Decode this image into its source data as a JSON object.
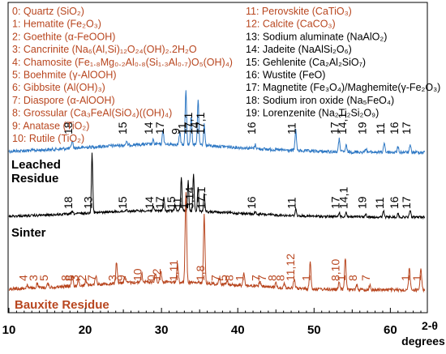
{
  "chart_data": {
    "type": "line",
    "xlabel_line1": "2-θ",
    "xlabel_line2": "degrees",
    "xlim": [
      10,
      65
    ],
    "x_ticks": [
      10,
      20,
      30,
      40,
      50,
      60
    ],
    "series": [
      {
        "name": "Leached Residue",
        "color": "#2e78c4"
      },
      {
        "name": "Sinter",
        "color": "#000000"
      },
      {
        "name": "Bauxite Residue",
        "color": "#b8461f"
      }
    ],
    "legend_left": [
      {
        "idx": "0",
        "name": "Quartz",
        "formula": "(SiO₂)",
        "color": "#b8461f"
      },
      {
        "idx": "1",
        "name": "Hematite",
        "formula": "(Fe₂O₃)",
        "color": "#b8461f"
      },
      {
        "idx": "2",
        "name": "Goethite",
        "formula": "(α-FeOOH)",
        "color": "#b8461f"
      },
      {
        "idx": "3",
        "name": "Cancrinite",
        "formula": "(Na₆(Al,Si)₁₂O₂₄(OH)₂.2H₂O",
        "color": "#b8461f"
      },
      {
        "idx": "4",
        "name": "Chamosite",
        "formula": "(Fe₁.₈Mg₀.₂Al₀.₈(Si₁.₃Al₀.₇)O₅(OH)₄)",
        "color": "#b8461f"
      },
      {
        "idx": "5",
        "name": "Boehmite",
        "formula": "(γ-AlOOH)",
        "color": "#b8461f"
      },
      {
        "idx": "6",
        "name": "Gibbsite",
        "formula": "(Al(OH)₃)",
        "color": "#b8461f"
      },
      {
        "idx": "7",
        "name": "Diaspore",
        "formula": "(α-AlOOH)",
        "color": "#b8461f"
      },
      {
        "idx": "8",
        "name": "Grossular",
        "formula": "(Ca₃FeAl(SiO₄)((OH)₄)",
        "color": "#b8461f"
      },
      {
        "idx": "9",
        "name": "Anatase",
        "formula": "(TiO₂)",
        "color": "#b8461f"
      },
      {
        "idx": "10",
        "name": "Rutile",
        "formula": "(TiO₂)",
        "color": "#b8461f"
      }
    ],
    "legend_right": [
      {
        "idx": "11",
        "name": "Perovskite",
        "formula": "(CaTiO₃)",
        "color": "#b8461f"
      },
      {
        "idx": "12",
        "name": "Calcite",
        "formula": "(CaCO₃)",
        "color": "#b8461f"
      },
      {
        "idx": "13",
        "name": "Sodium aluminate",
        "formula": "(NaAlO₂)",
        "color": "#000000"
      },
      {
        "idx": "14",
        "name": "Jadeite",
        "formula": "(NaAlSi₂O₆)",
        "color": "#000000"
      },
      {
        "idx": "15",
        "name": "Gehlenite",
        "formula": "(Ca₂Al₂SiO₇)",
        "color": "#000000"
      },
      {
        "idx": "16",
        "name": "Wustite",
        "formula": "(FeO)",
        "color": "#000000"
      },
      {
        "idx": "17",
        "name": "Magnetite",
        "formula": "(Fe₃O₄)/Maghemite(γ-Fe₂O₃)",
        "color": "#000000"
      },
      {
        "idx": "18",
        "name": "Sodium iron oxide",
        "formula": "(Na₅FeO₄)",
        "color": "#000000"
      },
      {
        "idx": "19",
        "name": "Lorenzenite",
        "formula": "(Na₂Ti₂Si₂O₉)",
        "color": "#000000"
      }
    ],
    "series_labels": [
      {
        "text": "Leached",
        "series": 0
      },
      {
        "text": "Residue",
        "series": 0
      },
      {
        "text": "Sinter",
        "series": 1
      },
      {
        "text": "Bauxite Residue",
        "series": 2
      }
    ],
    "peak_labels_leached": [
      {
        "x": 18.3,
        "text": "18"
      },
      {
        "x": 25.4,
        "text": "15"
      },
      {
        "x": 28.8,
        "text": "14"
      },
      {
        "x": 30.3,
        "text": "17"
      },
      {
        "x": 32.4,
        "text": "9"
      },
      {
        "x": 33.2,
        "text": "11"
      },
      {
        "x": 34.0,
        "text": "17,1"
      },
      {
        "x": 34.8,
        "text": "14"
      },
      {
        "x": 35.6,
        "text": "17,1"
      },
      {
        "x": 42.3,
        "text": "16"
      },
      {
        "x": 47.6,
        "text": "11"
      },
      {
        "x": 53.2,
        "text": "17"
      },
      {
        "x": 54.2,
        "text": "14,1"
      },
      {
        "x": 56.8,
        "text": "19"
      },
      {
        "x": 59.2,
        "text": "11"
      },
      {
        "x": 61.0,
        "text": "16"
      },
      {
        "x": 62.6,
        "text": "17"
      }
    ],
    "peak_labels_sinter": [
      {
        "x": 18.3,
        "text": "18"
      },
      {
        "x": 20.9,
        "text": "13"
      },
      {
        "x": 25.4,
        "text": "15"
      },
      {
        "x": 28.9,
        "text": "14"
      },
      {
        "x": 30.3,
        "text": "17"
      },
      {
        "x": 31.8,
        "text": "15"
      },
      {
        "x": 32.6,
        "text": "11"
      },
      {
        "x": 33.5,
        "text": "1"
      },
      {
        "x": 34.2,
        "text": "3,14"
      },
      {
        "x": 35.7,
        "text": "17,1"
      },
      {
        "x": 42.3,
        "text": "16"
      },
      {
        "x": 47.6,
        "text": "11"
      },
      {
        "x": 53.3,
        "text": "17"
      },
      {
        "x": 54.4,
        "text": "14,1"
      },
      {
        "x": 56.8,
        "text": "19"
      },
      {
        "x": 59.1,
        "text": "11"
      },
      {
        "x": 61.0,
        "text": "16"
      },
      {
        "x": 62.6,
        "text": "17"
      }
    ],
    "peak_labels_bauxite": [
      {
        "x": 12.4,
        "text": "4"
      },
      {
        "x": 13.7,
        "text": "3"
      },
      {
        "x": 15.1,
        "text": "5"
      },
      {
        "x": 17.9,
        "text": "8"
      },
      {
        "x": 18.5,
        "text": "6"
      },
      {
        "x": 19.1,
        "text": "3"
      },
      {
        "x": 20.1,
        "text": "2"
      },
      {
        "x": 21.4,
        "text": "7"
      },
      {
        "x": 24.1,
        "text": "3"
      },
      {
        "x": 25.2,
        "text": "9"
      },
      {
        "x": 27.4,
        "text": "10"
      },
      {
        "x": 29.2,
        "text": "0"
      },
      {
        "x": 29.9,
        "text": "12"
      },
      {
        "x": 32.1,
        "text": "1,11"
      },
      {
        "x": 35.6,
        "text": "1,8"
      },
      {
        "x": 37.6,
        "text": "7"
      },
      {
        "x": 38.6,
        "text": "5"
      },
      {
        "x": 39.4,
        "text": "8"
      },
      {
        "x": 40.8,
        "text": "1"
      },
      {
        "x": 42.9,
        "text": "7"
      },
      {
        "x": 43.7,
        "text": "7"
      },
      {
        "x": 45.0,
        "text": "8"
      },
      {
        "x": 46.1,
        "text": "8"
      },
      {
        "x": 47.4,
        "text": "11,12"
      },
      {
        "x": 49.5,
        "text": "1"
      },
      {
        "x": 53.3,
        "text": "8,10"
      },
      {
        "x": 54.1,
        "text": "1"
      },
      {
        "x": 55.6,
        "text": "8"
      },
      {
        "x": 57.3,
        "text": "7"
      },
      {
        "x": 62.5,
        "text": "1"
      },
      {
        "x": 64.0,
        "text": "1"
      }
    ],
    "leached_peaks": [
      {
        "x": 18.3,
        "h": 0.12
      },
      {
        "x": 25.4,
        "h": 0.05
      },
      {
        "x": 28.9,
        "h": 0.06
      },
      {
        "x": 30.2,
        "h": 0.22
      },
      {
        "x": 32.4,
        "h": 0.18
      },
      {
        "x": 33.2,
        "h": 0.85
      },
      {
        "x": 33.9,
        "h": 0.45
      },
      {
        "x": 34.8,
        "h": 0.7
      },
      {
        "x": 35.6,
        "h": 0.32
      },
      {
        "x": 42.3,
        "h": 0.06
      },
      {
        "x": 47.6,
        "h": 0.32
      },
      {
        "x": 53.3,
        "h": 0.2
      },
      {
        "x": 54.2,
        "h": 0.1
      },
      {
        "x": 56.8,
        "h": 0.06
      },
      {
        "x": 59.2,
        "h": 0.15
      },
      {
        "x": 61.0,
        "h": 0.08
      },
      {
        "x": 62.6,
        "h": 0.1
      }
    ],
    "sinter_peaks": [
      {
        "x": 18.3,
        "h": 0.04
      },
      {
        "x": 20.9,
        "h": 1.0
      },
      {
        "x": 25.4,
        "h": 0.04
      },
      {
        "x": 28.9,
        "h": 0.06
      },
      {
        "x": 30.3,
        "h": 0.22
      },
      {
        "x": 31.8,
        "h": 0.1
      },
      {
        "x": 32.6,
        "h": 0.55
      },
      {
        "x": 33.5,
        "h": 0.5
      },
      {
        "x": 34.2,
        "h": 0.6
      },
      {
        "x": 34.8,
        "h": 0.42
      },
      {
        "x": 35.6,
        "h": 0.3
      },
      {
        "x": 42.3,
        "h": 0.04
      },
      {
        "x": 47.6,
        "h": 0.12
      },
      {
        "x": 53.3,
        "h": 0.07
      },
      {
        "x": 54.2,
        "h": 0.08
      },
      {
        "x": 56.8,
        "h": 0.05
      },
      {
        "x": 59.1,
        "h": 0.1
      },
      {
        "x": 61.0,
        "h": 0.06
      },
      {
        "x": 62.6,
        "h": 0.12
      }
    ],
    "bauxite_peaks": [
      {
        "x": 12.4,
        "h": 0.04
      },
      {
        "x": 13.7,
        "h": 0.05
      },
      {
        "x": 15.1,
        "h": 0.04
      },
      {
        "x": 18.3,
        "h": 0.12
      },
      {
        "x": 19.1,
        "h": 0.06
      },
      {
        "x": 20.1,
        "h": 0.05
      },
      {
        "x": 21.4,
        "h": 0.1
      },
      {
        "x": 24.1,
        "h": 0.24
      },
      {
        "x": 25.2,
        "h": 0.08
      },
      {
        "x": 27.4,
        "h": 0.1
      },
      {
        "x": 29.2,
        "h": 0.1
      },
      {
        "x": 29.9,
        "h": 0.12
      },
      {
        "x": 32.1,
        "h": 0.2
      },
      {
        "x": 33.2,
        "h": 1.0
      },
      {
        "x": 35.6,
        "h": 0.75
      },
      {
        "x": 37.6,
        "h": 0.06
      },
      {
        "x": 38.6,
        "h": 0.05
      },
      {
        "x": 40.8,
        "h": 0.15
      },
      {
        "x": 42.9,
        "h": 0.06
      },
      {
        "x": 45.0,
        "h": 0.05
      },
      {
        "x": 46.1,
        "h": 0.05
      },
      {
        "x": 47.4,
        "h": 0.1
      },
      {
        "x": 49.5,
        "h": 0.3
      },
      {
        "x": 53.3,
        "h": 0.08
      },
      {
        "x": 54.1,
        "h": 0.35
      },
      {
        "x": 55.6,
        "h": 0.06
      },
      {
        "x": 57.3,
        "h": 0.05
      },
      {
        "x": 62.5,
        "h": 0.25
      },
      {
        "x": 64.0,
        "h": 0.25
      }
    ]
  }
}
